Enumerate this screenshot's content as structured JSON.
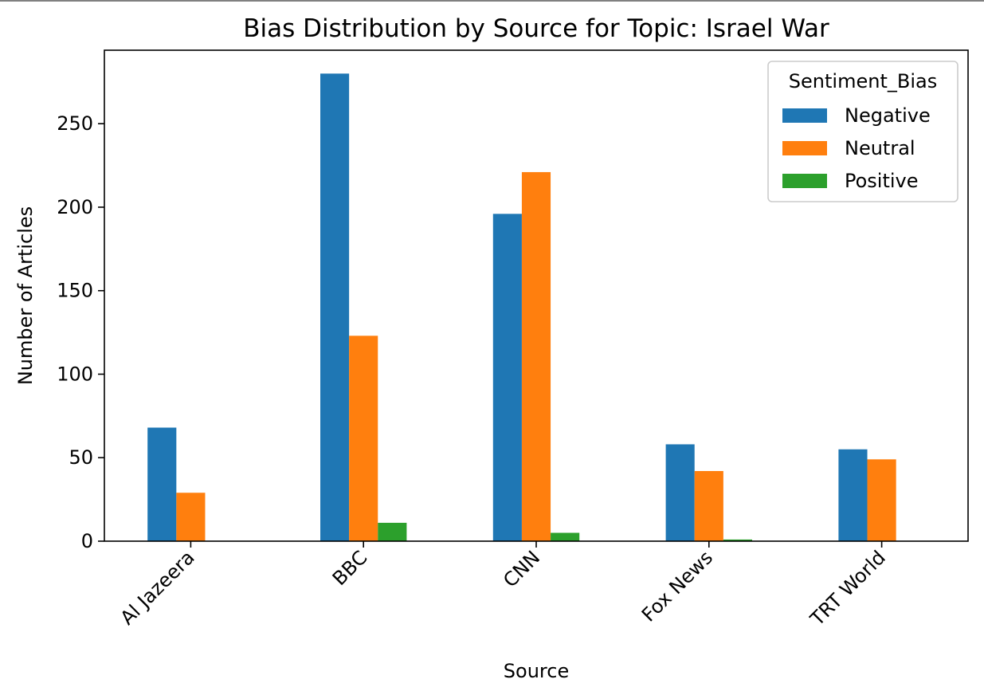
{
  "chart_data": {
    "type": "bar",
    "title": "Bias Distribution by Source for Topic: Israel War",
    "xlabel": "Source",
    "ylabel": "Number of Articles",
    "categories": [
      "Al Jazeera",
      "BBC",
      "CNN",
      "Fox News",
      "TRT World"
    ],
    "series": [
      {
        "name": "Negative",
        "color": "#1f77b4",
        "values": [
          68,
          280,
          196,
          58,
          55
        ]
      },
      {
        "name": "Neutral",
        "color": "#ff7f0e",
        "values": [
          29,
          123,
          221,
          42,
          49
        ]
      },
      {
        "name": "Positive",
        "color": "#2ca02c",
        "values": [
          0,
          11,
          5,
          1,
          0
        ]
      }
    ],
    "ylim": [
      0,
      294
    ],
    "yticks": [
      0,
      50,
      100,
      150,
      200,
      250
    ],
    "legend": {
      "title": "Sentiment_Bias",
      "position": "top-right"
    },
    "grid": false,
    "xtick_rotation": 45
  }
}
